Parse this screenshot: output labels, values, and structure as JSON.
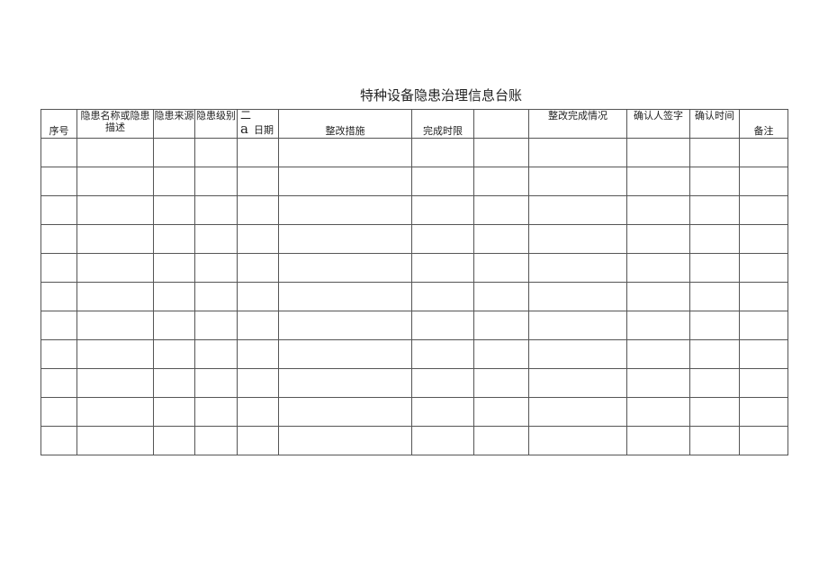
{
  "title": "特种设备隐患治理信息台账",
  "headers": {
    "c0": "序号",
    "c1": "隐患名称或隐患描述",
    "c2": "隐患来源",
    "c3": "隐患级别",
    "c4_top": "二",
    "c4_a": "a",
    "c4_label": "日期",
    "c5": "整改措施",
    "c6": "完成时限",
    "c7": "",
    "c8": "整改完成情况",
    "c9": "确认人签字",
    "c10": "确认时间",
    "c11": "备注"
  },
  "row_count": 11
}
